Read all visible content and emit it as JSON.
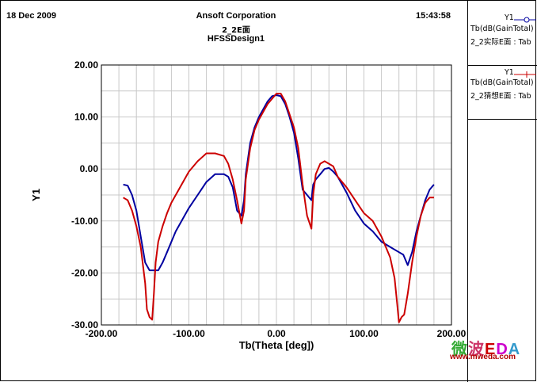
{
  "header": {
    "date": "18 Dec 2009",
    "company": "Ansoft Corporation",
    "plot_name": "2_2E面",
    "design": "HFSSDesign1",
    "time": "15:43:58"
  },
  "legend": [
    {
      "label": "Y1",
      "expr": "Tb(dB(GainTotal)",
      "source": "2_2实际E面 : Tab",
      "color": "#0000a0"
    },
    {
      "label": "Y1",
      "expr": "Tb(dB(GainTotal)",
      "source": "2_2猜想E面 : Tab",
      "color": "#cc0000"
    }
  ],
  "watermark": {
    "brand": "微波EDA",
    "url": "www.mweda.com"
  },
  "chart_data": {
    "type": "line",
    "xlabel": "Tb(Theta [deg])",
    "ylabel": "Y1",
    "xlim": [
      -200,
      200
    ],
    "ylim": [
      -30,
      20
    ],
    "xticks": [
      "-200.00",
      "-100.00",
      "0.00",
      "100.00",
      "200.00"
    ],
    "yticks": [
      "20.00",
      "10.00",
      "0.00",
      "-10.00",
      "-20.00",
      "-30.00"
    ],
    "grid": true,
    "series": [
      {
        "color": "#0000a0",
        "x": [
          -175,
          -170,
          -165,
          -160,
          -155,
          -150,
          -145,
          -140,
          -135,
          -130,
          -125,
          -120,
          -115,
          -110,
          -100,
          -90,
          -80,
          -70,
          -60,
          -55,
          -50,
          -45,
          -40,
          -37,
          -35,
          -30,
          -25,
          -20,
          -15,
          -10,
          -5,
          0,
          5,
          10,
          15,
          20,
          25,
          30,
          35,
          40,
          42,
          45,
          50,
          55,
          60,
          65,
          70,
          80,
          90,
          100,
          110,
          120,
          130,
          140,
          145,
          150,
          155,
          160,
          165,
          170,
          175,
          180
        ],
        "y": [
          -3,
          -3.2,
          -5,
          -8,
          -13,
          -18,
          -19.5,
          -19.5,
          -19.5,
          -18,
          -16,
          -14,
          -12,
          -10.5,
          -7.5,
          -5,
          -2.5,
          -1,
          -1,
          -1.5,
          -3.5,
          -8,
          -9,
          -6,
          -1,
          5,
          8,
          10,
          11.5,
          13,
          14,
          14.2,
          14,
          12.5,
          10,
          7,
          2,
          -4,
          -5,
          -6,
          -3,
          -2,
          -1,
          0,
          0.2,
          -0.5,
          -1.5,
          -4.5,
          -8,
          -10.5,
          -12,
          -14,
          -15,
          -16,
          -16.5,
          -18.5,
          -16,
          -12,
          -9,
          -6,
          -4,
          -3
        ]
      },
      {
        "color": "#cc0000",
        "x": [
          -175,
          -170,
          -165,
          -160,
          -155,
          -150,
          -148,
          -145,
          -142,
          -140,
          -138,
          -135,
          -130,
          -125,
          -120,
          -110,
          -100,
          -90,
          -80,
          -70,
          -60,
          -55,
          -50,
          -45,
          -40,
          -37,
          -35,
          -30,
          -25,
          -20,
          -15,
          -10,
          -5,
          0,
          5,
          10,
          15,
          20,
          25,
          30,
          35,
          40,
          42,
          45,
          50,
          55,
          60,
          65,
          70,
          80,
          90,
          100,
          110,
          120,
          130,
          135,
          138,
          140,
          143,
          146,
          150,
          155,
          160,
          165,
          170,
          175,
          180
        ],
        "y": [
          -5.5,
          -6,
          -8,
          -11,
          -15,
          -22,
          -27,
          -28.5,
          -29,
          -24,
          -18,
          -14,
          -11,
          -8.5,
          -6.5,
          -3.5,
          -0.5,
          1.5,
          3,
          3,
          2.5,
          1,
          -2,
          -6,
          -10.5,
          -8,
          -2,
          4,
          7.5,
          9.5,
          11,
          12.5,
          13.5,
          14.5,
          14.5,
          13,
          10.5,
          8,
          4,
          -3,
          -9,
          -11.5,
          -5,
          -1,
          1,
          1.5,
          1,
          0.5,
          -1.5,
          -3.5,
          -6,
          -8.5,
          -10,
          -13,
          -17,
          -21,
          -26,
          -29.5,
          -28.5,
          -28,
          -24,
          -18,
          -13,
          -9,
          -6.5,
          -5.5,
          -5.5
        ]
      }
    ]
  }
}
